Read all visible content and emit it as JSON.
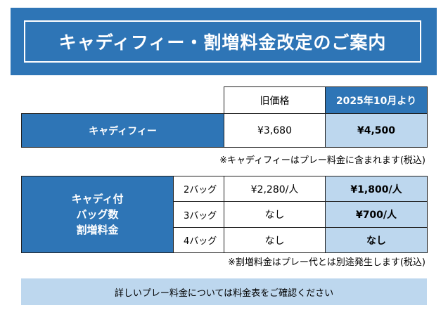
{
  "title": "キャディフィー・割増料金改定のご案内",
  "fee_table": {
    "headers": {
      "old": "旧価格",
      "new": "2025年10月より"
    },
    "row": {
      "label": "キャディフィー",
      "old": "¥3,680",
      "new": "¥4,500"
    }
  },
  "note1": "※キャディフィーはプレー料金に含まれます(税込)",
  "surcharge": {
    "label_lines": [
      "キャディ付",
      "バッグ数",
      "割増料金"
    ],
    "rows": [
      {
        "bags": "2バッグ",
        "old": "¥2,280/人",
        "new": "¥1,800/人"
      },
      {
        "bags": "3バッグ",
        "old": "なし",
        "new": "¥700/人"
      },
      {
        "bags": "4バッグ",
        "old": "なし",
        "new": "なし"
      }
    ]
  },
  "note2": "※割増料金はプレー代とは別途発生します(税込)",
  "footer": "詳しいプレー料金については料金表をご確認ください",
  "colors": {
    "primary": "#2e75b6",
    "light": "#bdd7ee",
    "border": "#1f1f1f"
  }
}
